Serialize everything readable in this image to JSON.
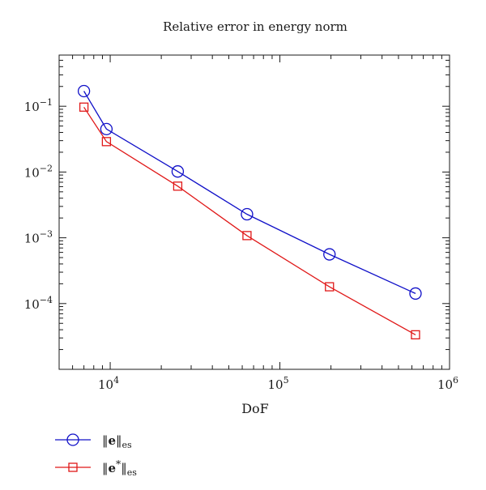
{
  "chart_data": {
    "type": "line",
    "title": "Relative error in energy norm",
    "xlabel": "DoF",
    "ylabel": "",
    "x_scale": "log",
    "y_scale": "log",
    "xlim": [
      5000,
      1000000
    ],
    "ylim": [
      1e-05,
      0.6
    ],
    "x_ticks": [
      {
        "value": 10000,
        "base": "10",
        "exp": "4"
      },
      {
        "value": 100000,
        "base": "10",
        "exp": "5"
      },
      {
        "value": 1000000,
        "base": "10",
        "exp": "6"
      }
    ],
    "y_ticks": [
      {
        "value": 0.1,
        "base": "10",
        "exp": "−1"
      },
      {
        "value": 0.01,
        "base": "10",
        "exp": "−2"
      },
      {
        "value": 0.001,
        "base": "10",
        "exp": "−3"
      },
      {
        "value": 0.0001,
        "base": "10",
        "exp": "−4"
      }
    ],
    "grid": false,
    "legend_position": "bottom-left",
    "series": [
      {
        "name": "‖e‖es",
        "color": "#1010c8",
        "marker": "circle",
        "x": [
          7000,
          9500,
          25000,
          64000,
          196000,
          630000
        ],
        "y": [
          0.17,
          0.045,
          0.0102,
          0.00228,
          0.00056,
          0.000142
        ]
      },
      {
        "name": "‖e*‖es",
        "color": "#e01818",
        "marker": "square",
        "x": [
          7000,
          9500,
          25000,
          64000,
          196000,
          630000
        ],
        "y": [
          0.097,
          0.029,
          0.0061,
          0.00108,
          0.00018,
          3.35e-05
        ]
      }
    ]
  },
  "legend": {
    "items": [
      {
        "norm_open": "‖",
        "symbol": "e",
        "sup": "",
        "norm_close": "‖",
        "sub": "es"
      },
      {
        "norm_open": "‖",
        "symbol": "e",
        "sup": "*",
        "norm_close": "‖",
        "sub": "es"
      }
    ]
  }
}
